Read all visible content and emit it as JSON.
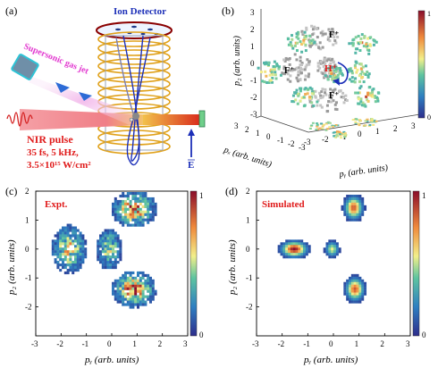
{
  "panel_a": {
    "label": "(a)",
    "ion_detector": "Ion Detector",
    "gas_jet": "Supersonic gas jet",
    "nir_title": "NIR pulse",
    "nir_line1": "35 fs, 5 kHz,",
    "nir_line2": "3.5×10¹⁵ W/cm²",
    "field_label": "E"
  },
  "panel_b": {
    "label": "(b)",
    "zlabel": "p₂ (arb. units)",
    "xlabel": "pₓ (arb. units)",
    "ylabel": "pᵧ (arb. units)",
    "h_label": "H⁺",
    "f_label": "F⁺",
    "z_ticks": [
      "3",
      "2",
      "1",
      "0",
      "-1",
      "-2",
      "-3"
    ],
    "x_ticks": [
      "3",
      "2",
      "1",
      "0",
      "-1",
      "-2",
      "-3"
    ],
    "y_ticks": [
      "-3",
      "-2",
      "-1",
      "0",
      "1",
      "2",
      "3"
    ],
    "cbar_ticks": [
      "1",
      "0"
    ]
  },
  "panel_c": {
    "label": "(c)",
    "title": "Expt.",
    "xlabel": "pᵧ (arb. units)",
    "ylabel": "p₂ (arb. units)",
    "x_ticks": [
      "-3",
      "-2",
      "-1",
      "0",
      "1",
      "2",
      "3"
    ],
    "y_ticks": [
      "2",
      "1",
      "0",
      "-1",
      "-2"
    ],
    "cbar_ticks": [
      "1",
      "0"
    ]
  },
  "panel_d": {
    "label": "(d)",
    "title": "Simulated",
    "xlabel": "pᵧ (arb. units)",
    "ylabel": "p₂ (arb. units)",
    "x_ticks": [
      "-3",
      "-2",
      "-1",
      "0",
      "1",
      "2",
      "3"
    ],
    "y_ticks": [
      "2",
      "1",
      "0",
      "-1",
      "-2"
    ],
    "cbar_ticks": [
      "1",
      "0"
    ]
  },
  "chart_data": [
    {
      "type": "heatmap",
      "title": "Expt.",
      "xlabel": "p_y (arb. units)",
      "ylabel": "p_z (arb. units)",
      "xlim": [
        -3,
        3
      ],
      "ylim": [
        -3,
        2
      ],
      "colorbar": [
        0,
        1
      ],
      "blobs": [
        {
          "x": 0.9,
          "y": 1.4,
          "sx": 0.45,
          "sy": 0.32,
          "peak": 0.95
        },
        {
          "x": -1.7,
          "y": 0.0,
          "sx": 0.38,
          "sy": 0.45,
          "peak": 0.7
        },
        {
          "x": -0.1,
          "y": 0.0,
          "sx": 0.3,
          "sy": 0.42,
          "peak": 0.55
        },
        {
          "x": 0.9,
          "y": -1.4,
          "sx": 0.45,
          "sy": 0.32,
          "peak": 0.95
        }
      ]
    },
    {
      "type": "heatmap",
      "title": "Simulated",
      "xlabel": "p_y (arb. units)",
      "ylabel": "p_z (arb. units)",
      "xlim": [
        -3,
        3
      ],
      "ylim": [
        -3,
        2
      ],
      "colorbar": [
        0,
        1
      ],
      "blobs": [
        {
          "x": 0.8,
          "y": 1.45,
          "sx": 0.2,
          "sy": 0.22,
          "peak": 0.85
        },
        {
          "x": -1.55,
          "y": 0.0,
          "sx": 0.28,
          "sy": 0.15,
          "peak": 1.0
        },
        {
          "x": -0.05,
          "y": 0.0,
          "sx": 0.15,
          "sy": 0.15,
          "peak": 0.55
        },
        {
          "x": 0.85,
          "y": -1.4,
          "sx": 0.2,
          "sy": 0.22,
          "peak": 0.85
        }
      ]
    }
  ]
}
